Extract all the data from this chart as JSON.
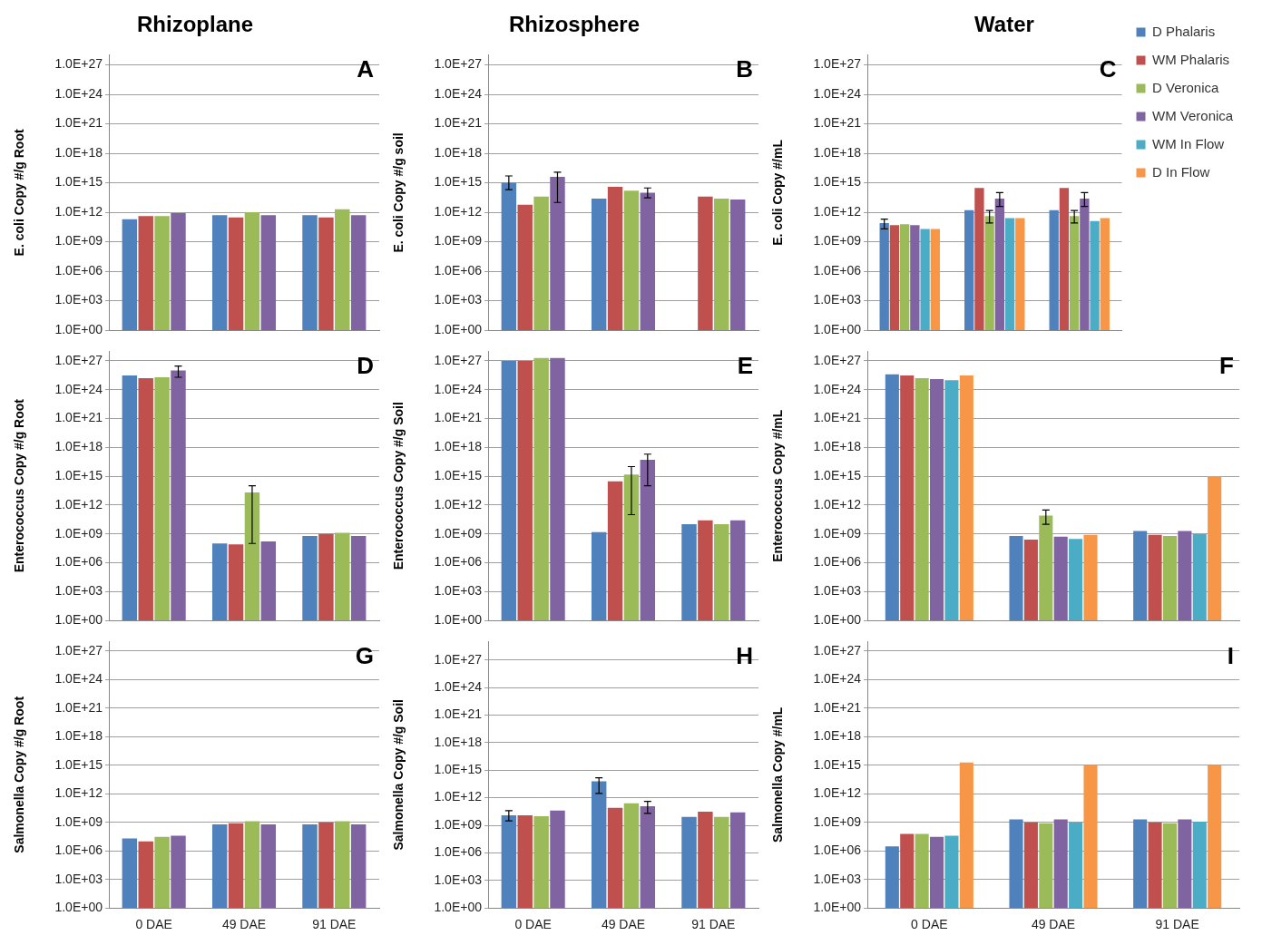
{
  "chart_data": [
    {
      "type": "bar",
      "title": "Rhizoplane",
      "ylabel": "E. coli Copy #/g Root",
      "annotations": [
        "A"
      ],
      "categories": [
        null,
        null,
        null
      ],
      "tick_labels": "y",
      "log": "y",
      "grid": "y",
      "legend": false,
      "ylim": [
        1,
        1e+28
      ],
      "yticks": [
        {
          "value": 1,
          "label": "1.0E+00"
        },
        {
          "value": 1000.0,
          "label": "1.0E+03"
        },
        {
          "value": 1000000.0,
          "label": "1.0E+06"
        },
        {
          "value": 1000000000.0,
          "label": "1.0E+09"
        },
        {
          "value": 1000000000000.0,
          "label": "1.0E+12"
        },
        {
          "value": 1000000000000000.0,
          "label": "1.0E+15"
        },
        {
          "value": 1e+18,
          "label": "1.0E+18"
        },
        {
          "value": 1e+21,
          "label": "1.0E+21"
        },
        {
          "value": 1e+24,
          "label": "1.0E+24"
        },
        {
          "value": 1e+27,
          "label": "1.0E+27"
        }
      ],
      "series": [
        {
          "color": "#4f81bd",
          "values": [
            200000000000.0,
            500000000000.0,
            500000000000.0
          ]
        },
        {
          "color": "#c0504d",
          "values": [
            400000000000.0,
            300000000000.0,
            300000000000.0
          ]
        },
        {
          "color": "#9bbb59",
          "values": [
            400000000000.0,
            1000000000000.0,
            2000000000000.0
          ]
        },
        {
          "color": "#8064a2",
          "values": [
            800000000000.0,
            500000000000.0,
            500000000000.0
          ]
        }
      ]
    },
    {
      "type": "bar",
      "title": "Rhizosphere",
      "ylabel": "E. coli Copy #/g soil",
      "annotations": [
        "B"
      ],
      "categories": [
        null,
        null,
        null
      ],
      "tick_labels": "y",
      "log": "y",
      "grid": "y",
      "legend": false,
      "ylim": [
        1,
        1e+28
      ],
      "yticks": [
        {
          "value": 1,
          "label": "1.0E+00"
        },
        {
          "value": 1000.0,
          "label": "1.0E+03"
        },
        {
          "value": 1000000.0,
          "label": "1.0E+06"
        },
        {
          "value": 1000000000.0,
          "label": "1.0E+09"
        },
        {
          "value": 1000000000000.0,
          "label": "1.0E+12"
        },
        {
          "value": 1000000000000000.0,
          "label": "1.0E+15"
        },
        {
          "value": 1e+18,
          "label": "1.0E+18"
        },
        {
          "value": 1e+21,
          "label": "1.0E+21"
        },
        {
          "value": 1e+24,
          "label": "1.0E+24"
        },
        {
          "value": 1e+27,
          "label": "1.0E+27"
        }
      ],
      "series": [
        {
          "color": "#4f81bd",
          "values": [
            1000000000000000.0,
            25000000000000.0,
            null
          ],
          "errors": [
            [
              200000000000000.0,
              5000000000000000.0
            ],
            null,
            null
          ]
        },
        {
          "color": "#c0504d",
          "values": [
            6000000000000.0,
            400000000000000.0,
            40000000000000.0
          ]
        },
        {
          "color": "#9bbb59",
          "values": [
            40000000000000.0,
            160000000000000.0,
            25000000000000.0
          ]
        },
        {
          "color": "#8064a2",
          "values": [
            4000000000000000.0,
            100000000000000.0,
            20000000000000.0
          ],
          "errors": [
            [
              10000000000000.0,
              1.2e+16
            ],
            [
              30000000000000.0,
              300000000000000.0
            ],
            null
          ]
        }
      ]
    },
    {
      "type": "bar",
      "title": "Water",
      "ylabel": "E. coli Copy #/mL",
      "annotations": [
        "C"
      ],
      "categories": [
        null,
        null,
        null
      ],
      "tick_labels": "y",
      "log": "y",
      "grid": "y",
      "legend": "right",
      "ylim": [
        1,
        1e+28
      ],
      "yticks": [
        {
          "value": 1,
          "label": "1.0E+00"
        },
        {
          "value": 1000.0,
          "label": "1.0E+03"
        },
        {
          "value": 1000000.0,
          "label": "1.0E+06"
        },
        {
          "value": 1000000000.0,
          "label": "1.0E+09"
        },
        {
          "value": 1000000000000.0,
          "label": "1.0E+12"
        },
        {
          "value": 1000000000000000.0,
          "label": "1.0E+15"
        },
        {
          "value": 1e+18,
          "label": "1.0E+18"
        },
        {
          "value": 1e+21,
          "label": "1.0E+21"
        },
        {
          "value": 1e+24,
          "label": "1.0E+24"
        },
        {
          "value": 1e+27,
          "label": "1.0E+27"
        }
      ],
      "series": [
        {
          "name": "D Phalaris",
          "color": "#4f81bd",
          "values": [
            80000000000.0,
            1600000000000.0,
            1600000000000.0
          ],
          "errors": [
            [
              20000000000.0,
              200000000000.0
            ],
            null,
            null
          ]
        },
        {
          "name": "WM Phalaris",
          "color": "#c0504d",
          "values": [
            50000000000.0,
            300000000000000.0,
            300000000000000.0
          ]
        },
        {
          "name": "D Veronica",
          "color": "#9bbb59",
          "values": [
            60000000000.0,
            400000000000.0,
            400000000000.0
          ],
          "errors": [
            null,
            [
              80000000000.0,
              1500000000000.0
            ],
            [
              80000000000.0,
              1500000000000.0
            ]
          ]
        },
        {
          "name": "WM Veronica",
          "color": "#8064a2",
          "values": [
            50000000000.0,
            25000000000000.0,
            25000000000000.0
          ],
          "errors": [
            null,
            [
              4000000000000.0,
              100000000000000.0
            ],
            [
              4000000000000.0,
              100000000000000.0
            ]
          ]
        },
        {
          "name": "WM In Flow",
          "color": "#4bacc6",
          "values": [
            20000000000.0,
            250000000000.0,
            130000000000.0
          ]
        },
        {
          "name": "D In Flow",
          "color": "#f79646",
          "values": [
            20000000000.0,
            250000000000.0,
            250000000000.0
          ]
        }
      ]
    },
    {
      "type": "bar",
      "ylabel": "Enterococcus Copy #/g Root",
      "annotations": [
        "D"
      ],
      "categories": [
        null,
        null,
        null
      ],
      "tick_labels": "y",
      "log": "y",
      "grid": "y",
      "legend": false,
      "ylim": [
        1,
        1e+28
      ],
      "yticks": [
        {
          "value": 1,
          "label": "1.0E+00"
        },
        {
          "value": 1000.0,
          "label": "1.0E+03"
        },
        {
          "value": 1000000.0,
          "label": "1.0E+06"
        },
        {
          "value": 1000000000.0,
          "label": "1.0E+09"
        },
        {
          "value": 1000000000000.0,
          "label": "1.0E+12"
        },
        {
          "value": 1000000000000000.0,
          "label": "1.0E+15"
        },
        {
          "value": 1e+18,
          "label": "1.0E+18"
        },
        {
          "value": 1e+21,
          "label": "1.0E+21"
        },
        {
          "value": 1e+24,
          "label": "1.0E+24"
        },
        {
          "value": 1e+27,
          "label": "1.0E+27"
        }
      ],
      "series": [
        {
          "color": "#4f81bd",
          "values": [
            3e+25,
            100000000.0,
            600000000.0
          ]
        },
        {
          "color": "#c0504d",
          "values": [
            1.6e+25,
            80000000.0,
            1000000000.0
          ]
        },
        {
          "color": "#9bbb59",
          "values": [
            2e+25,
            20000000000000.0,
            1300000000.0
          ],
          "errors": [
            null,
            [
              100000000.0,
              100000000000000.0
            ],
            null
          ]
        },
        {
          "color": "#8064a2",
          "values": [
            1e+26,
            160000000.0,
            600000000.0
          ],
          "errors": [
            [
              2e+25,
              3e+26
            ],
            null,
            null
          ]
        }
      ]
    },
    {
      "type": "bar",
      "ylabel": "Enterococcus Copy #/g Soil",
      "annotations": [
        "E"
      ],
      "categories": [
        null,
        null,
        null
      ],
      "tick_labels": "y",
      "log": "y",
      "grid": "y",
      "legend": false,
      "ylim": [
        1,
        1e+28
      ],
      "yticks": [
        {
          "value": 1,
          "label": "1.0E+00"
        },
        {
          "value": 1000.0,
          "label": "1.0E+03"
        },
        {
          "value": 1000000.0,
          "label": "1.0E+06"
        },
        {
          "value": 1000000000.0,
          "label": "1.0E+09"
        },
        {
          "value": 1000000000000.0,
          "label": "1.0E+12"
        },
        {
          "value": 1000000000000000.0,
          "label": "1.0E+15"
        },
        {
          "value": 1e+18,
          "label": "1.0E+18"
        },
        {
          "value": 1e+21,
          "label": "1.0E+21"
        },
        {
          "value": 1e+24,
          "label": "1.0E+24"
        },
        {
          "value": 1e+27,
          "label": "1.0E+27"
        }
      ],
      "series": [
        {
          "color": "#4f81bd",
          "values": [
            1e+27,
            1500000000.0,
            10000000000.0
          ]
        },
        {
          "color": "#c0504d",
          "values": [
            1e+27,
            300000000000000.0,
            25000000000.0
          ]
        },
        {
          "color": "#9bbb59",
          "values": [
            2e+27,
            1500000000000000.0,
            10000000000.0
          ],
          "errors": [
            null,
            [
              100000000000.0,
              1e+16
            ],
            null
          ]
        },
        {
          "color": "#8064a2",
          "values": [
            2e+27,
            5e+16,
            25000000000.0
          ],
          "errors": [
            null,
            [
              100000000000000.0,
              2e+17
            ],
            null
          ]
        }
      ]
    },
    {
      "type": "bar",
      "ylabel": "Enterococcus Copy #/mL",
      "annotations": [
        "F"
      ],
      "categories": [
        null,
        null,
        null
      ],
      "tick_labels": "y",
      "log": "y",
      "grid": "y",
      "legend": false,
      "ylim": [
        1,
        1e+28
      ],
      "yticks": [
        {
          "value": 1,
          "label": "1.0E+00"
        },
        {
          "value": 1000.0,
          "label": "1.0E+03"
        },
        {
          "value": 1000000.0,
          "label": "1.0E+06"
        },
        {
          "value": 1000000000.0,
          "label": "1.0E+09"
        },
        {
          "value": 1000000000000.0,
          "label": "1.0E+12"
        },
        {
          "value": 1000000000000000.0,
          "label": "1.0E+15"
        },
        {
          "value": 1e+18,
          "label": "1.0E+18"
        },
        {
          "value": 1e+21,
          "label": "1.0E+21"
        },
        {
          "value": 1e+24,
          "label": "1.0E+24"
        },
        {
          "value": 1e+27,
          "label": "1.0E+27"
        }
      ],
      "series": [
        {
          "color": "#4f81bd",
          "values": [
            4e+25,
            600000000.0,
            2000000000.0
          ]
        },
        {
          "color": "#c0504d",
          "values": [
            3e+25,
            250000000.0,
            800000000.0
          ]
        },
        {
          "color": "#9bbb59",
          "values": [
            1.6e+25,
            80000000000.0,
            600000000.0
          ],
          "errors": [
            null,
            [
              10000000000.0,
              300000000000.0
            ],
            null
          ]
        },
        {
          "color": "#8064a2",
          "values": [
            1.3e+25,
            500000000.0,
            2000000000.0
          ]
        },
        {
          "color": "#4bacc6",
          "values": [
            1e+25,
            300000000.0,
            1000000000.0
          ]
        },
        {
          "color": "#f79646",
          "values": [
            3e+25,
            800000000.0,
            1000000000000000.0
          ]
        }
      ]
    },
    {
      "type": "bar",
      "ylabel": "Salmonella Copy #/g Root",
      "annotations": [
        "G"
      ],
      "categories": [
        "0 DAE",
        "49 DAE",
        "91 DAE"
      ],
      "log": "y",
      "grid": "y",
      "legend": false,
      "ylim": [
        1,
        1e+28
      ],
      "yticks": [
        {
          "value": 1,
          "label": "1.0E+00"
        },
        {
          "value": 1000.0,
          "label": "1.0E+03"
        },
        {
          "value": 1000000.0,
          "label": "1.0E+06"
        },
        {
          "value": 1000000000.0,
          "label": "1.0E+09"
        },
        {
          "value": 1000000000000.0,
          "label": "1.0E+12"
        },
        {
          "value": 1000000000000000.0,
          "label": "1.0E+15"
        },
        {
          "value": 1e+18,
          "label": "1.0E+18"
        },
        {
          "value": 1e+21,
          "label": "1.0E+21"
        },
        {
          "value": 1e+24,
          "label": "1.0E+24"
        },
        {
          "value": 1e+27,
          "label": "1.0E+27"
        }
      ],
      "series": [
        {
          "color": "#4f81bd",
          "values": [
            20000000.0,
            600000000.0,
            600000000.0
          ]
        },
        {
          "color": "#c0504d",
          "values": [
            10000000.0,
            800000000.0,
            1000000000.0
          ]
        },
        {
          "color": "#9bbb59",
          "values": [
            30000000.0,
            1300000000.0,
            1300000000.0
          ]
        },
        {
          "color": "#8064a2",
          "values": [
            40000000.0,
            600000000.0,
            600000000.0
          ]
        }
      ]
    },
    {
      "type": "bar",
      "ylabel": "Salmonella Copy #/g Soil",
      "annotations": [
        "H"
      ],
      "categories": [
        "0 DAE",
        "49 DAE",
        "91 DAE"
      ],
      "log": "y",
      "grid": "y",
      "legend": false,
      "ylim": [
        1,
        1e+29
      ],
      "yticks": [
        {
          "value": 1,
          "label": "1.0E+00"
        },
        {
          "value": 1000.0,
          "label": "1.0E+03"
        },
        {
          "value": 1000000.0,
          "label": "1.0E+06"
        },
        {
          "value": 1000000000.0,
          "label": "1.0E+09"
        },
        {
          "value": 1000000000000.0,
          "label": "1.0E+12"
        },
        {
          "value": 1000000000000000.0,
          "label": "1.0E+15"
        },
        {
          "value": 1e+18,
          "label": "1.0E+18"
        },
        {
          "value": 1e+21,
          "label": "1.0E+21"
        },
        {
          "value": 1e+24,
          "label": "1.0E+24"
        },
        {
          "value": 1e+27,
          "label": "1.0E+27"
        }
      ],
      "series": [
        {
          "color": "#4f81bd",
          "values": [
            12000000000.0,
            60000000000000.0,
            8000000000.0
          ],
          "errors": [
            [
              3000000000.0,
              40000000000.0
            ],
            [
              3000000000000.0,
              150000000000000.0
            ],
            null
          ]
        },
        {
          "color": "#c0504d",
          "values": [
            12000000000.0,
            80000000000.0,
            30000000000.0
          ]
        },
        {
          "color": "#9bbb59",
          "values": [
            10000000000.0,
            250000000000.0,
            8000000000.0
          ]
        },
        {
          "color": "#8064a2",
          "values": [
            40000000000.0,
            120000000000.0,
            25000000000.0
          ],
          "errors": [
            null,
            [
              20000000000.0,
              400000000000.0
            ],
            null
          ]
        }
      ]
    },
    {
      "type": "bar",
      "ylabel": "Salmonella Copy #/mL",
      "annotations": [
        "I"
      ],
      "categories": [
        "0 DAE",
        "49 DAE",
        "91 DAE"
      ],
      "log": "y",
      "grid": "y",
      "legend": false,
      "ylim": [
        1,
        1e+28
      ],
      "yticks": [
        {
          "value": 1,
          "label": "1.0E+00"
        },
        {
          "value": 1000.0,
          "label": "1.0E+03"
        },
        {
          "value": 1000000.0,
          "label": "1.0E+06"
        },
        {
          "value": 1000000000.0,
          "label": "1.0E+09"
        },
        {
          "value": 1000000000000.0,
          "label": "1.0E+12"
        },
        {
          "value": 1000000000000000.0,
          "label": "1.0E+15"
        },
        {
          "value": 1e+18,
          "label": "1.0E+18"
        },
        {
          "value": 1e+21,
          "label": "1.0E+21"
        },
        {
          "value": 1e+24,
          "label": "1.0E+24"
        },
        {
          "value": 1e+27,
          "label": "1.0E+27"
        }
      ],
      "series": [
        {
          "color": "#4f81bd",
          "values": [
            3000000.0,
            2000000000.0,
            2000000000.0
          ]
        },
        {
          "color": "#c0504d",
          "values": [
            60000000.0,
            1000000000.0,
            1000000000.0
          ]
        },
        {
          "color": "#9bbb59",
          "values": [
            60000000.0,
            800000000.0,
            800000000.0
          ]
        },
        {
          "color": "#8064a2",
          "values": [
            30000000.0,
            2000000000.0,
            2000000000.0
          ]
        },
        {
          "color": "#4bacc6",
          "values": [
            40000000.0,
            1000000000.0,
            1200000000.0
          ]
        },
        {
          "color": "#f79646",
          "values": [
            2000000000000000.0,
            1000000000000000.0,
            1000000000000000.0
          ]
        }
      ]
    }
  ]
}
